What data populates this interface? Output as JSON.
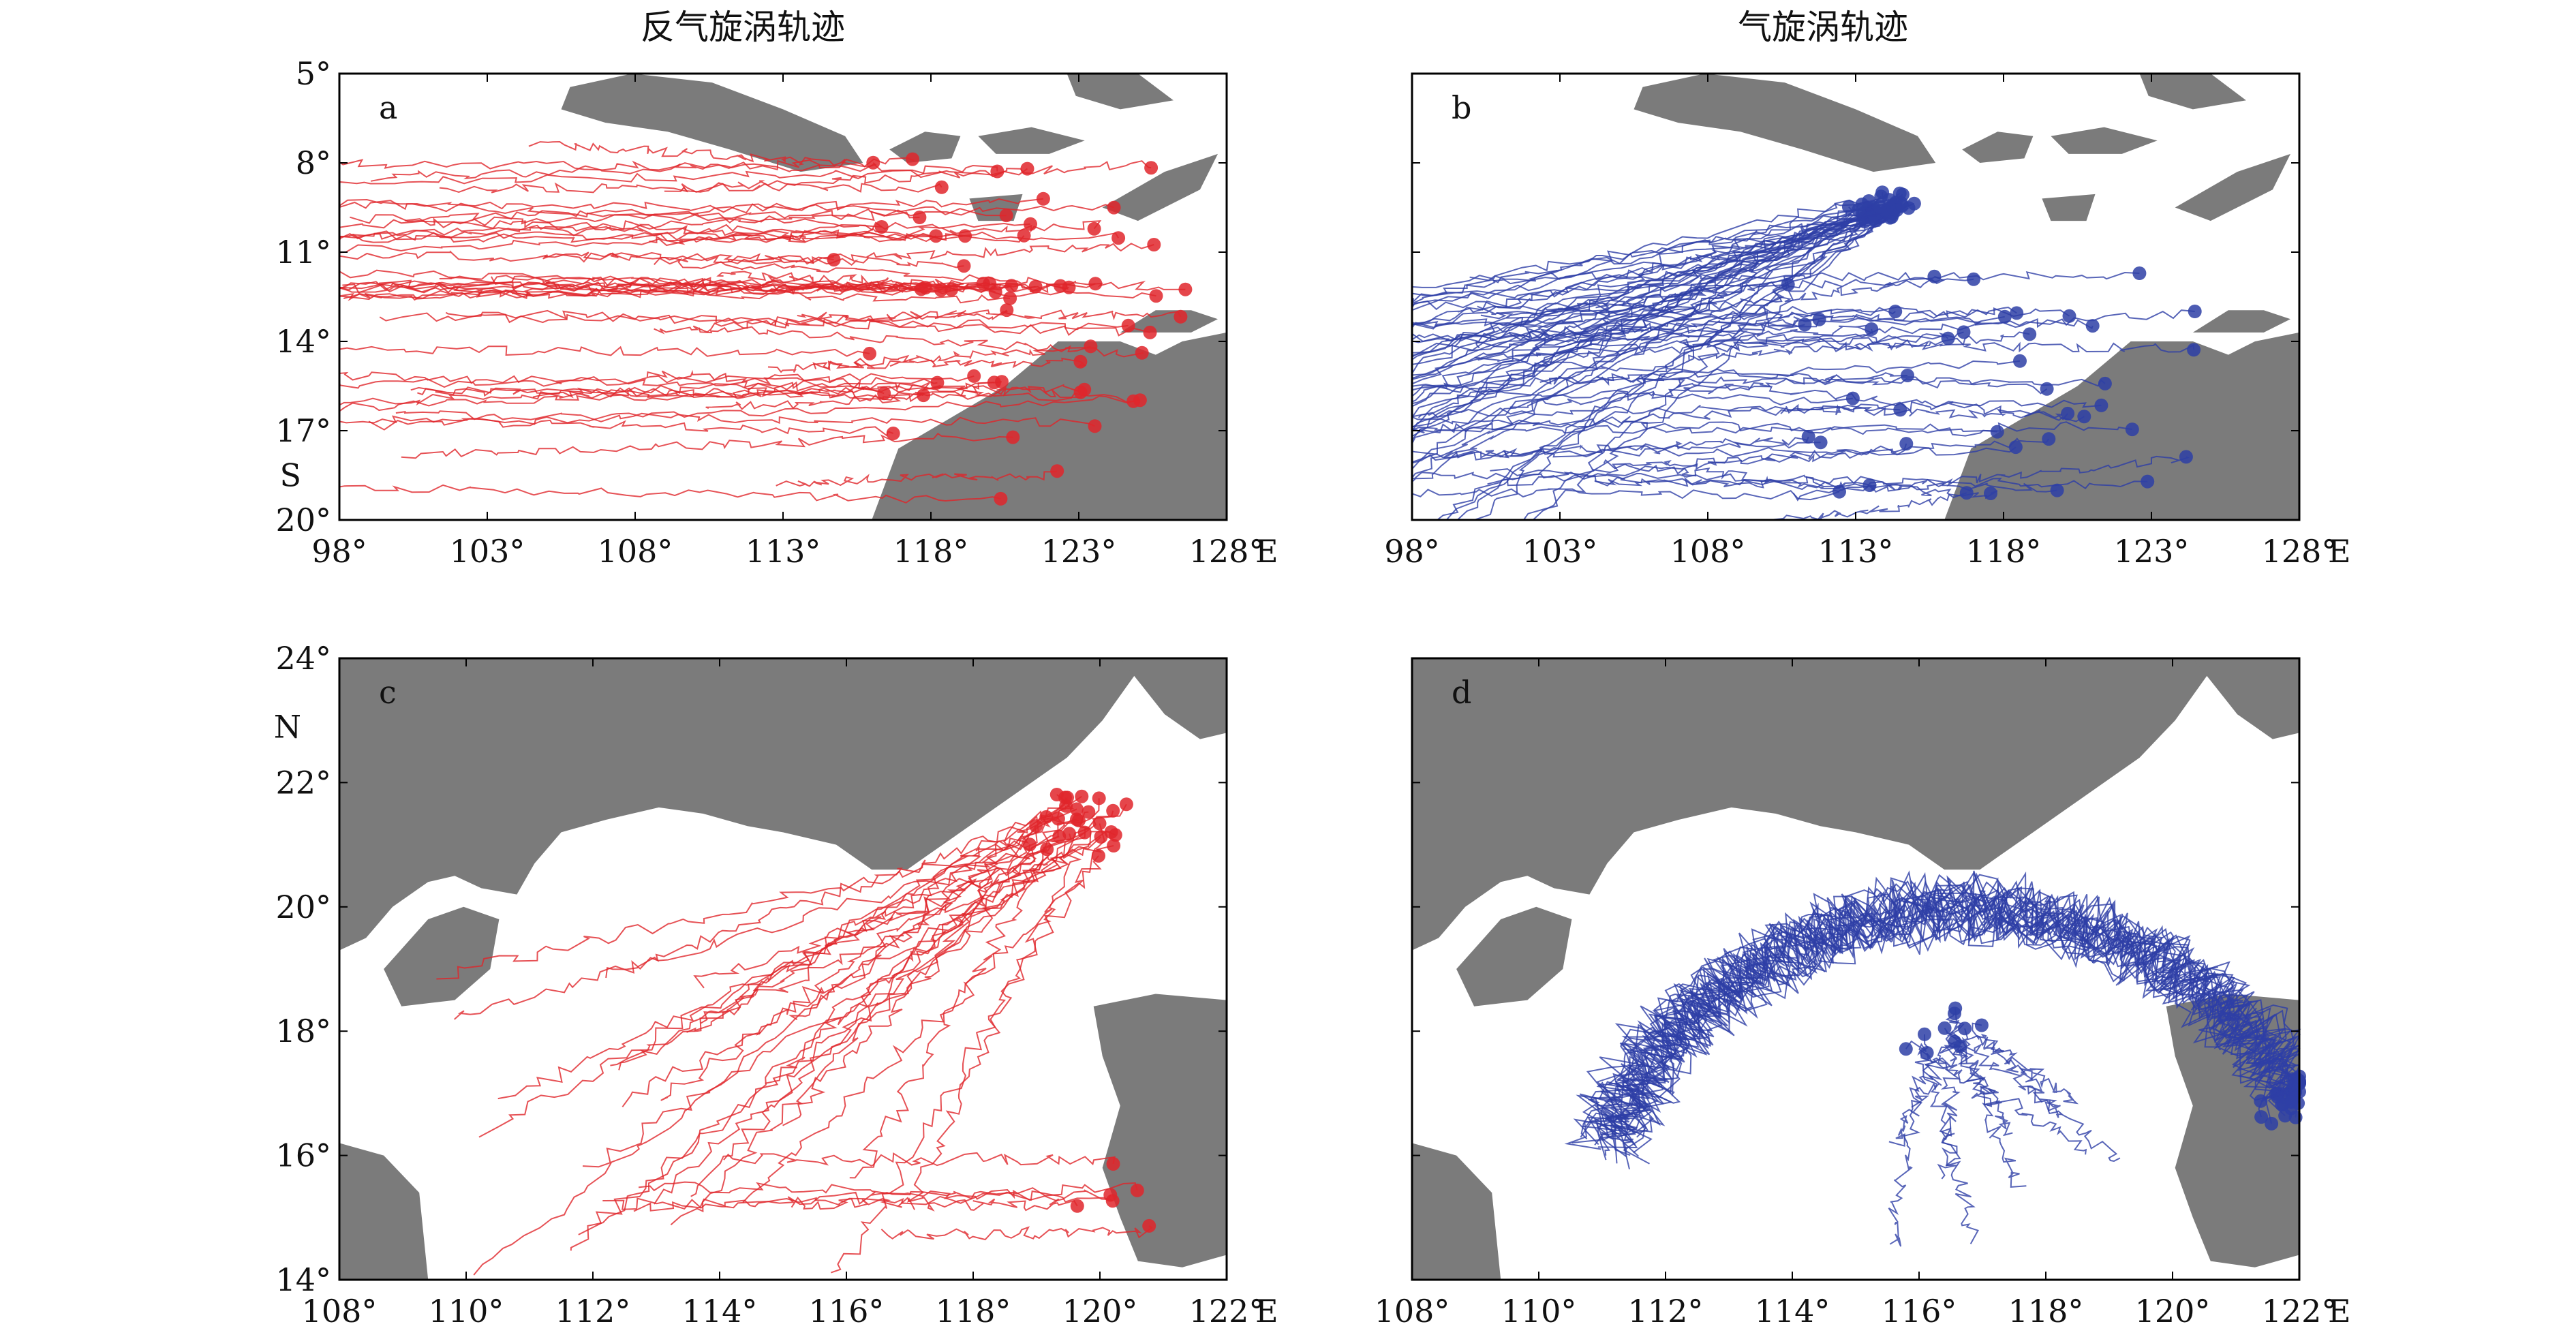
{
  "titles": {
    "left": "反气旋涡轨迹",
    "right": "气旋涡轨迹"
  },
  "colors": {
    "anticyclone": "#e0262b",
    "cyclone": "#2e3fa6",
    "land": "#7b7b7b",
    "frame": "#000000"
  },
  "chart_data": [
    {
      "type": "map-tracks",
      "panel": "a",
      "lon_ticks": [
        "98°",
        "103°",
        "108°",
        "113°",
        "118°",
        "123°",
        "128°"
      ],
      "lat_ticks": [
        "5°",
        "8°",
        "11°",
        "14°",
        "17°",
        "20°"
      ],
      "lon_axis_suffix": "E",
      "lat_axis_label": "S",
      "xlim": [
        98,
        128
      ],
      "ylim": [
        5,
        20
      ],
      "y_inverted": true,
      "series": [
        {
          "eddy_type": "anticyclonic",
          "color": "#e0262b"
        }
      ]
    },
    {
      "type": "map-tracks",
      "panel": "b",
      "lon_ticks": [
        "98°",
        "103°",
        "108°",
        "113°",
        "118°",
        "123°",
        "128°"
      ],
      "lat_ticks": [],
      "lon_axis_suffix": "E",
      "xlim": [
        98,
        128
      ],
      "ylim": [
        5,
        20
      ],
      "y_inverted": true,
      "series": [
        {
          "eddy_type": "cyclonic",
          "color": "#2e3fa6"
        }
      ]
    },
    {
      "type": "map-tracks",
      "panel": "c",
      "lon_ticks": [
        "108°",
        "110°",
        "112°",
        "114°",
        "116°",
        "118°",
        "120°",
        "122°"
      ],
      "lat_ticks": [
        "24°",
        "22°",
        "20°",
        "18°",
        "16°",
        "14°"
      ],
      "lon_axis_suffix": "E",
      "lat_axis_label": "N",
      "xlim": [
        108,
        122
      ],
      "ylim": [
        14,
        24
      ],
      "series": [
        {
          "eddy_type": "anticyclonic",
          "color": "#e0262b"
        }
      ]
    },
    {
      "type": "map-tracks",
      "panel": "d",
      "lon_ticks": [
        "108°",
        "110°",
        "112°",
        "114°",
        "116°",
        "118°",
        "120°",
        "122°"
      ],
      "lat_ticks": [],
      "lon_axis_suffix": "E",
      "xlim": [
        108,
        122
      ],
      "ylim": [
        14,
        24
      ],
      "series": [
        {
          "eddy_type": "cyclonic",
          "color": "#2e3fa6"
        }
      ]
    }
  ]
}
